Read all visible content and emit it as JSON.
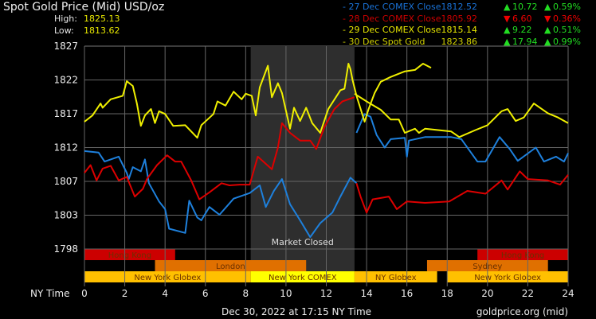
{
  "header": {
    "title": "Spot Gold Price (Mid) USD/oz",
    "high_label": "High:",
    "high_value": "1825.13",
    "low_label": "Low:",
    "low_value": "1813.62"
  },
  "legend": [
    {
      "label": "- 27 Dec COMEX Close",
      "value": "1812.52",
      "change": "10.72",
      "pct": "0.59%",
      "dir": "up",
      "color": "#1a73d9"
    },
    {
      "label": "- 28 Dec COMEX Close",
      "value": "1805.92",
      "change": "6.60",
      "pct": "0.36%",
      "dir": "down",
      "color": "#cc0000"
    },
    {
      "label": "- 29 Dec COMEX Close",
      "value": "1815.14",
      "change": "9.22",
      "pct": "0.51%",
      "dir": "up",
      "color": "#e8e800"
    },
    {
      "label": "- 30 Dec Spot Gold",
      "value": "1823.86",
      "change": "17.94",
      "pct": "0.99%",
      "dir": "up",
      "color": "#d2d200"
    }
  ],
  "colors": {
    "up": "#22dd22",
    "down": "#ee0000",
    "grid": "#666666",
    "closed": "#2e2e2e"
  },
  "footer": {
    "timestamp": "Dec 30, 2022 at 17:15 NY Time",
    "source": "goldprice.org (mid)"
  },
  "chart_data": {
    "type": "line",
    "xlabel": "NY Time",
    "xlim": [
      0,
      24
    ],
    "ylim": [
      1798,
      1827
    ],
    "x_ticks": [
      "0",
      "2",
      "4",
      "6",
      "8",
      "10",
      "12",
      "14",
      "16",
      "18",
      "20",
      "22",
      "24"
    ],
    "y_ticks": [
      "1827",
      "1822",
      "1817",
      "1812",
      "1807",
      "1803",
      "1798"
    ],
    "grid": true,
    "annotation": {
      "label": "Market Closed",
      "from": 8.25,
      "to": 13.4
    },
    "sessions": [
      {
        "label": "Hong Kong",
        "row": 0,
        "from": 0,
        "to": 4.5,
        "color": "#cc0000"
      },
      {
        "label": "Hong Kong",
        "row": 0,
        "from": 19.5,
        "to": 24,
        "color": "#cc0000"
      },
      {
        "label": "London",
        "row": 1,
        "from": 3.5,
        "to": 11,
        "color": "#e07000"
      },
      {
        "label": "Sydney",
        "row": 1,
        "from": 17,
        "to": 23,
        "color": "#e07000"
      },
      {
        "label": "New York Globex",
        "row": 2,
        "from": 0,
        "to": 8.25,
        "color": "#ffc000"
      },
      {
        "label": "New York COMEX",
        "row": 2,
        "from": 8.25,
        "to": 13.4,
        "color": "#ffff00"
      },
      {
        "label": "NY Globex",
        "row": 2,
        "from": 13.4,
        "to": 17.5,
        "color": "#ffc000"
      },
      {
        "label": "New York Globex",
        "row": 2,
        "from": 18,
        "to": 24,
        "color": "#ffc000"
      }
    ],
    "series": [
      {
        "name": "27 Dec COMEX Close",
        "color": "#1e80dc",
        "segments": [
          [
            [
              0,
              1812.0
            ],
            [
              0.7,
              1811.8
            ],
            [
              1.0,
              1810.5
            ],
            [
              1.7,
              1811.2
            ],
            [
              2.1,
              1808.9
            ],
            [
              2.2,
              1808.0
            ],
            [
              2.4,
              1809.7
            ],
            [
              2.8,
              1809.1
            ],
            [
              3.0,
              1810.8
            ],
            [
              3.2,
              1807.4
            ],
            [
              3.7,
              1804.8
            ],
            [
              4.0,
              1803.7
            ],
            [
              4.2,
              1800.9
            ],
            [
              5.0,
              1800.3
            ],
            [
              5.2,
              1804.9
            ],
            [
              5.6,
              1802.5
            ],
            [
              5.8,
              1802.1
            ],
            [
              6.2,
              1804.0
            ],
            [
              6.7,
              1802.9
            ],
            [
              7.4,
              1805.2
            ],
            [
              8.2,
              1806.0
            ],
            [
              8.7,
              1807.1
            ],
            [
              9.0,
              1804.0
            ],
            [
              9.4,
              1806.3
            ],
            [
              9.8,
              1808.0
            ],
            [
              10.2,
              1804.4
            ],
            [
              10.7,
              1802.1
            ],
            [
              11.2,
              1799.7
            ],
            [
              11.7,
              1801.7
            ],
            [
              12.3,
              1803.2
            ],
            [
              12.7,
              1805.5
            ],
            [
              13.2,
              1808.2
            ],
            [
              13.5,
              1807.4
            ]
          ],
          [
            [
              13.5,
              1814.6
            ],
            [
              13.9,
              1817.3
            ],
            [
              14.2,
              1816.9
            ],
            [
              14.5,
              1814.3
            ],
            [
              14.9,
              1812.5
            ],
            [
              15.2,
              1813.7
            ],
            [
              15.9,
              1813.9
            ],
            [
              16.0,
              1811.2
            ],
            [
              16.1,
              1813.5
            ],
            [
              16.9,
              1814.0
            ],
            [
              18.2,
              1814.0
            ],
            [
              18.7,
              1813.7
            ],
            [
              19.5,
              1810.5
            ],
            [
              19.9,
              1810.5
            ],
            [
              20.6,
              1814.0
            ],
            [
              21.1,
              1812.3
            ],
            [
              21.5,
              1810.6
            ],
            [
              22.4,
              1812.5
            ],
            [
              22.8,
              1810.5
            ],
            [
              23.4,
              1811.2
            ],
            [
              23.8,
              1810.5
            ],
            [
              24.0,
              1811.7
            ]
          ]
        ]
      },
      {
        "name": "28 Dec COMEX Close",
        "color": "#dd0000",
        "segments": [
          [
            [
              0,
              1808.9
            ],
            [
              0.3,
              1810.0
            ],
            [
              0.6,
              1807.8
            ],
            [
              0.9,
              1809.5
            ],
            [
              1.3,
              1809.9
            ],
            [
              1.7,
              1807.8
            ],
            [
              2.1,
              1808.3
            ],
            [
              2.5,
              1805.5
            ],
            [
              2.9,
              1806.6
            ],
            [
              3.1,
              1808.0
            ],
            [
              3.6,
              1810.0
            ],
            [
              4.1,
              1811.4
            ],
            [
              4.5,
              1810.5
            ],
            [
              4.8,
              1810.5
            ],
            [
              5.3,
              1807.8
            ],
            [
              5.7,
              1805.1
            ],
            [
              6.2,
              1806.1
            ],
            [
              6.8,
              1807.4
            ],
            [
              7.2,
              1807.1
            ],
            [
              7.7,
              1807.2
            ],
            [
              8.2,
              1807.2
            ],
            [
              8.6,
              1811.2
            ],
            [
              9.3,
              1809.4
            ],
            [
              9.6,
              1812.5
            ],
            [
              9.8,
              1816.0
            ],
            [
              10.2,
              1814.6
            ],
            [
              10.7,
              1813.5
            ],
            [
              11.2,
              1813.5
            ],
            [
              11.5,
              1812.3
            ],
            [
              11.9,
              1815.4
            ],
            [
              12.4,
              1818.0
            ],
            [
              12.8,
              1819.1
            ],
            [
              13.4,
              1819.7
            ]
          ],
          [
            [
              13.5,
              1807.4
            ],
            [
              13.7,
              1805.5
            ],
            [
              14.0,
              1803.2
            ],
            [
              14.3,
              1805.1
            ],
            [
              15.1,
              1805.5
            ],
            [
              15.5,
              1803.7
            ],
            [
              16.0,
              1804.8
            ],
            [
              16.9,
              1804.6
            ],
            [
              18.1,
              1804.8
            ],
            [
              19.0,
              1806.3
            ],
            [
              19.9,
              1805.9
            ],
            [
              20.7,
              1807.8
            ],
            [
              21.0,
              1806.5
            ],
            [
              21.6,
              1809.1
            ],
            [
              22.0,
              1808.0
            ],
            [
              23.0,
              1807.8
            ],
            [
              23.6,
              1807.2
            ],
            [
              24.0,
              1808.6
            ]
          ]
        ]
      },
      {
        "name": "29 Dec COMEX Close",
        "color": "#f0f000",
        "segments": [
          [
            [
              13.4,
              1820.2
            ],
            [
              14.0,
              1819.1
            ],
            [
              14.7,
              1817.9
            ],
            [
              15.2,
              1816.5
            ],
            [
              15.6,
              1816.5
            ],
            [
              15.9,
              1814.6
            ],
            [
              16.4,
              1815.2
            ],
            [
              16.6,
              1814.6
            ],
            [
              16.9,
              1815.2
            ],
            [
              18.2,
              1814.8
            ],
            [
              18.6,
              1814.0
            ],
            [
              19.4,
              1815.0
            ],
            [
              20.0,
              1815.7
            ],
            [
              20.7,
              1817.7
            ],
            [
              21.0,
              1818.0
            ],
            [
              21.4,
              1816.3
            ],
            [
              21.8,
              1816.8
            ],
            [
              22.3,
              1818.8
            ],
            [
              23.0,
              1817.4
            ],
            [
              23.5,
              1816.8
            ],
            [
              24.0,
              1816.0
            ]
          ]
        ]
      },
      {
        "name": "30 Dec Spot Gold",
        "color": "#f0f000",
        "segments": [
          [
            [
              0,
              1816.2
            ],
            [
              0.4,
              1817.1
            ],
            [
              0.8,
              1818.8
            ],
            [
              0.9,
              1818.2
            ],
            [
              1.3,
              1819.4
            ],
            [
              1.9,
              1819.9
            ],
            [
              2.1,
              1822.0
            ],
            [
              2.4,
              1821.3
            ],
            [
              2.6,
              1818.8
            ],
            [
              2.8,
              1815.6
            ],
            [
              3.0,
              1817.1
            ],
            [
              3.3,
              1818.0
            ],
            [
              3.5,
              1816.0
            ],
            [
              3.7,
              1817.7
            ],
            [
              4.0,
              1817.3
            ],
            [
              4.4,
              1815.6
            ],
            [
              5.0,
              1815.7
            ],
            [
              5.6,
              1813.9
            ],
            [
              5.8,
              1815.7
            ],
            [
              6.4,
              1817.3
            ],
            [
              6.6,
              1819.1
            ],
            [
              7.0,
              1818.5
            ],
            [
              7.4,
              1820.5
            ],
            [
              7.8,
              1819.4
            ],
            [
              8.0,
              1820.2
            ],
            [
              8.3,
              1819.9
            ],
            [
              8.5,
              1817.1
            ],
            [
              8.7,
              1821.1
            ],
            [
              9.1,
              1824.2
            ],
            [
              9.3,
              1819.7
            ],
            [
              9.6,
              1821.7
            ],
            [
              9.8,
              1820.3
            ],
            [
              10.2,
              1815.2
            ],
            [
              10.4,
              1818.2
            ],
            [
              10.7,
              1816.3
            ],
            [
              11.0,
              1818.2
            ],
            [
              11.3,
              1816.0
            ],
            [
              11.7,
              1814.6
            ],
            [
              12.1,
              1818.0
            ],
            [
              12.7,
              1820.7
            ],
            [
              12.9,
              1820.9
            ],
            [
              13.1,
              1824.5
            ],
            [
              13.2,
              1823.7
            ],
            [
              13.3,
              1822.2
            ],
            [
              13.5,
              1819.9
            ],
            [
              13.9,
              1816.2
            ],
            [
              14.1,
              1818.0
            ],
            [
              14.4,
              1820.3
            ],
            [
              14.7,
              1821.9
            ],
            [
              15.2,
              1822.6
            ],
            [
              15.9,
              1823.4
            ],
            [
              16.4,
              1823.6
            ],
            [
              16.8,
              1824.5
            ],
            [
              17.0,
              1824.2
            ],
            [
              17.2,
              1823.9
            ]
          ]
        ]
      }
    ]
  }
}
